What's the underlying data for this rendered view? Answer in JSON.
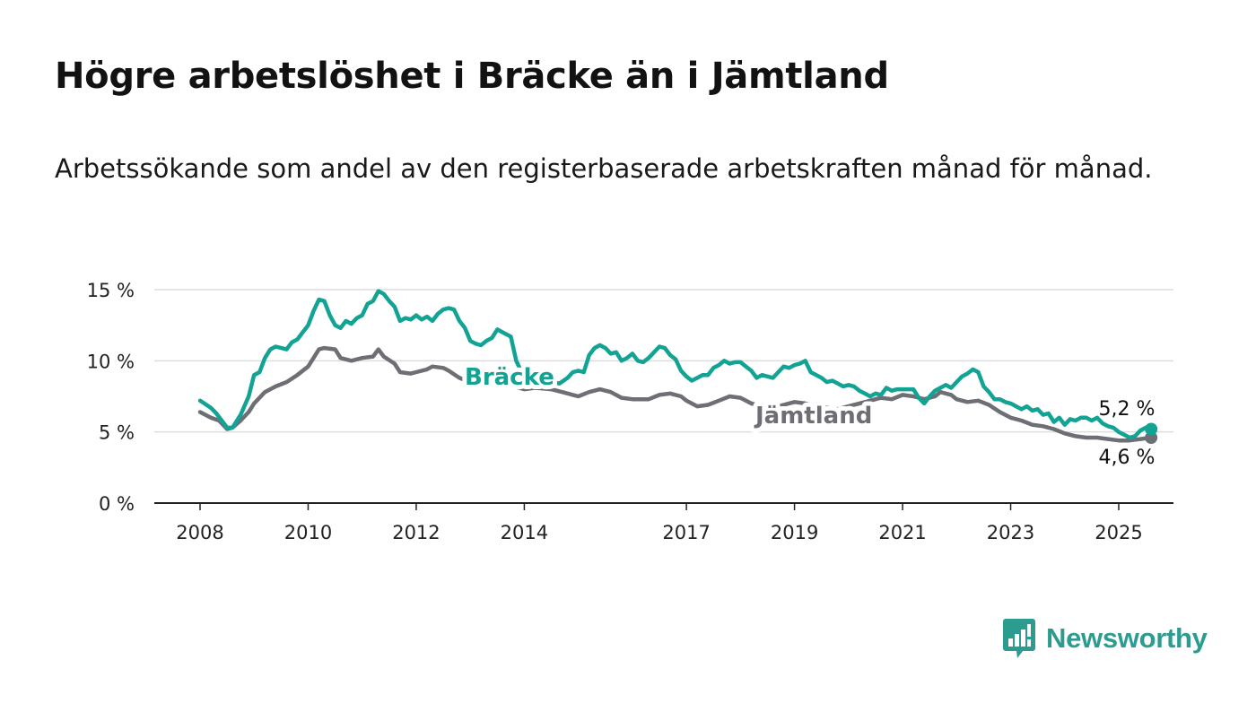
{
  "header": {
    "title": "Högre arbetslöshet i Bräcke än i Jämtland",
    "subtitle": "Arbetssökande som andel av den registerbaserade arbetskraften månad för månad."
  },
  "logo": {
    "text": "Newsworthy",
    "icon": "newsworthy-chart-bubble-icon"
  },
  "colors": {
    "bracke": "#13a394",
    "jamtland": "#6e6e75",
    "grid": "#dddddd",
    "axis": "#222222"
  },
  "chart_data": {
    "type": "line",
    "title": "Högre arbetslöshet i Bräcke än i Jämtland",
    "subtitle": "Arbetssökande som andel av den registerbaserade arbetskraften månad för månad.",
    "xlabel": "",
    "ylabel": "",
    "xlim": [
      2007.6,
      2025.9
    ],
    "ylim": [
      0,
      15
    ],
    "x_ticks": [
      2008,
      2010,
      2012,
      2014,
      2017,
      2019,
      2021,
      2023,
      2025
    ],
    "x_tick_labels": [
      "2008",
      "2010",
      "2012",
      "2014",
      "2017",
      "2019",
      "2021",
      "2023",
      "2025"
    ],
    "y_ticks": [
      0,
      5,
      10,
      15
    ],
    "y_tick_labels": [
      "0 %",
      "5 %",
      "10 %",
      "15 %"
    ],
    "grid": "horizontal",
    "series": [
      {
        "name": "Bräcke",
        "end_label": "5,2 %",
        "points": [
          [
            2008.0,
            7.2
          ],
          [
            2008.2,
            6.7
          ],
          [
            2008.3,
            6.3
          ],
          [
            2008.5,
            5.3
          ],
          [
            2008.6,
            5.3
          ],
          [
            2008.75,
            6.2
          ],
          [
            2008.9,
            7.5
          ],
          [
            2009.0,
            9.0
          ],
          [
            2009.1,
            9.2
          ],
          [
            2009.2,
            10.2
          ],
          [
            2009.3,
            10.8
          ],
          [
            2009.4,
            11.0
          ],
          [
            2009.6,
            10.8
          ],
          [
            2009.7,
            11.3
          ],
          [
            2009.8,
            11.5
          ],
          [
            2009.9,
            12.0
          ],
          [
            2010.0,
            12.5
          ],
          [
            2010.1,
            13.5
          ],
          [
            2010.2,
            14.3
          ],
          [
            2010.3,
            14.2
          ],
          [
            2010.4,
            13.2
          ],
          [
            2010.5,
            12.5
          ],
          [
            2010.6,
            12.3
          ],
          [
            2010.7,
            12.8
          ],
          [
            2010.8,
            12.6
          ],
          [
            2010.9,
            13.0
          ],
          [
            2011.0,
            13.2
          ],
          [
            2011.1,
            14.0
          ],
          [
            2011.2,
            14.2
          ],
          [
            2011.3,
            14.9
          ],
          [
            2011.4,
            14.7
          ],
          [
            2011.5,
            14.2
          ],
          [
            2011.6,
            13.8
          ],
          [
            2011.7,
            12.8
          ],
          [
            2011.8,
            13.0
          ],
          [
            2011.9,
            12.9
          ],
          [
            2012.0,
            13.2
          ],
          [
            2012.1,
            12.9
          ],
          [
            2012.2,
            13.1
          ],
          [
            2012.3,
            12.8
          ],
          [
            2012.4,
            13.3
          ],
          [
            2012.5,
            13.6
          ],
          [
            2012.6,
            13.7
          ],
          [
            2012.7,
            13.6
          ],
          [
            2012.8,
            12.8
          ],
          [
            2012.9,
            12.3
          ],
          [
            2013.0,
            11.4
          ],
          [
            2013.1,
            11.2
          ],
          [
            2013.2,
            11.1
          ],
          [
            2013.3,
            11.4
          ],
          [
            2013.4,
            11.6
          ],
          [
            2013.5,
            12.2
          ],
          [
            2013.6,
            12.0
          ],
          [
            2013.75,
            11.7
          ],
          [
            2013.85,
            10.0
          ],
          [
            2013.95,
            9.2
          ],
          [
            2014.05,
            8.5
          ],
          [
            2014.25,
            9.0
          ],
          [
            2014.5,
            8.5
          ],
          [
            2014.65,
            8.4
          ],
          [
            2014.8,
            8.8
          ],
          [
            2014.9,
            9.2
          ],
          [
            2015.0,
            9.3
          ],
          [
            2015.1,
            9.2
          ],
          [
            2015.2,
            10.4
          ],
          [
            2015.3,
            10.9
          ],
          [
            2015.4,
            11.1
          ],
          [
            2015.5,
            10.9
          ],
          [
            2015.6,
            10.5
          ],
          [
            2015.7,
            10.6
          ],
          [
            2015.8,
            10.0
          ],
          [
            2015.9,
            10.2
          ],
          [
            2016.0,
            10.5
          ],
          [
            2016.1,
            10.0
          ],
          [
            2016.2,
            9.9
          ],
          [
            2016.3,
            10.2
          ],
          [
            2016.4,
            10.6
          ],
          [
            2016.5,
            11.0
          ],
          [
            2016.6,
            10.9
          ],
          [
            2016.7,
            10.4
          ],
          [
            2016.8,
            10.1
          ],
          [
            2016.9,
            9.3
          ],
          [
            2017.0,
            8.9
          ],
          [
            2017.1,
            8.6
          ],
          [
            2017.2,
            8.8
          ],
          [
            2017.3,
            9.0
          ],
          [
            2017.4,
            9.0
          ],
          [
            2017.5,
            9.5
          ],
          [
            2017.6,
            9.7
          ],
          [
            2017.7,
            10.0
          ],
          [
            2017.8,
            9.8
          ],
          [
            2017.9,
            9.9
          ],
          [
            2018.0,
            9.9
          ],
          [
            2018.1,
            9.6
          ],
          [
            2018.2,
            9.3
          ],
          [
            2018.3,
            8.8
          ],
          [
            2018.4,
            9.0
          ],
          [
            2018.5,
            8.9
          ],
          [
            2018.6,
            8.8
          ],
          [
            2018.7,
            9.2
          ],
          [
            2018.8,
            9.6
          ],
          [
            2018.9,
            9.5
          ],
          [
            2019.0,
            9.7
          ],
          [
            2019.1,
            9.8
          ],
          [
            2019.2,
            10.0
          ],
          [
            2019.3,
            9.2
          ],
          [
            2019.4,
            9.0
          ],
          [
            2019.5,
            8.8
          ],
          [
            2019.6,
            8.5
          ],
          [
            2019.7,
            8.6
          ],
          [
            2019.8,
            8.4
          ],
          [
            2019.9,
            8.2
          ],
          [
            2020.0,
            8.3
          ],
          [
            2020.1,
            8.2
          ],
          [
            2020.2,
            7.9
          ],
          [
            2020.3,
            7.7
          ],
          [
            2020.4,
            7.5
          ],
          [
            2020.5,
            7.7
          ],
          [
            2020.6,
            7.6
          ],
          [
            2020.7,
            8.1
          ],
          [
            2020.8,
            7.9
          ],
          [
            2020.9,
            8.0
          ],
          [
            2021.0,
            8.0
          ],
          [
            2021.2,
            8.0
          ],
          [
            2021.3,
            7.4
          ],
          [
            2021.4,
            7.0
          ],
          [
            2021.5,
            7.5
          ],
          [
            2021.6,
            7.9
          ],
          [
            2021.7,
            8.1
          ],
          [
            2021.8,
            8.3
          ],
          [
            2021.9,
            8.1
          ],
          [
            2022.0,
            8.5
          ],
          [
            2022.1,
            8.9
          ],
          [
            2022.2,
            9.1
          ],
          [
            2022.3,
            9.4
          ],
          [
            2022.4,
            9.2
          ],
          [
            2022.5,
            8.2
          ],
          [
            2022.6,
            7.8
          ],
          [
            2022.7,
            7.3
          ],
          [
            2022.8,
            7.3
          ],
          [
            2022.9,
            7.1
          ],
          [
            2023.0,
            7.0
          ],
          [
            2023.1,
            6.8
          ],
          [
            2023.2,
            6.6
          ],
          [
            2023.3,
            6.8
          ],
          [
            2023.4,
            6.5
          ],
          [
            2023.5,
            6.6
          ],
          [
            2023.6,
            6.2
          ],
          [
            2023.7,
            6.3
          ],
          [
            2023.8,
            5.7
          ],
          [
            2023.9,
            6.0
          ],
          [
            2024.0,
            5.5
          ],
          [
            2024.1,
            5.9
          ],
          [
            2024.2,
            5.8
          ],
          [
            2024.3,
            6.0
          ],
          [
            2024.4,
            6.0
          ],
          [
            2024.5,
            5.8
          ],
          [
            2024.6,
            6.0
          ],
          [
            2024.7,
            5.6
          ],
          [
            2024.8,
            5.4
          ],
          [
            2024.9,
            5.3
          ],
          [
            2025.0,
            5.0
          ],
          [
            2025.1,
            4.8
          ],
          [
            2025.2,
            4.6
          ],
          [
            2025.3,
            4.7
          ],
          [
            2025.4,
            5.1
          ],
          [
            2025.5,
            5.3
          ],
          [
            2025.6,
            5.2
          ]
        ]
      },
      {
        "name": "Jämtland",
        "end_label": "4,6 %",
        "points": [
          [
            2008.0,
            6.4
          ],
          [
            2008.2,
            6.0
          ],
          [
            2008.35,
            5.8
          ],
          [
            2008.5,
            5.2
          ],
          [
            2008.6,
            5.3
          ],
          [
            2008.75,
            5.8
          ],
          [
            2008.9,
            6.4
          ],
          [
            2009.0,
            7.0
          ],
          [
            2009.2,
            7.8
          ],
          [
            2009.4,
            8.2
          ],
          [
            2009.6,
            8.5
          ],
          [
            2009.8,
            9.0
          ],
          [
            2010.0,
            9.6
          ],
          [
            2010.1,
            10.2
          ],
          [
            2010.2,
            10.8
          ],
          [
            2010.3,
            10.9
          ],
          [
            2010.5,
            10.8
          ],
          [
            2010.6,
            10.2
          ],
          [
            2010.8,
            10.0
          ],
          [
            2011.0,
            10.2
          ],
          [
            2011.2,
            10.3
          ],
          [
            2011.3,
            10.8
          ],
          [
            2011.4,
            10.3
          ],
          [
            2011.6,
            9.8
          ],
          [
            2011.7,
            9.2
          ],
          [
            2011.9,
            9.1
          ],
          [
            2012.0,
            9.2
          ],
          [
            2012.2,
            9.4
          ],
          [
            2012.3,
            9.6
          ],
          [
            2012.5,
            9.5
          ],
          [
            2012.6,
            9.3
          ],
          [
            2012.8,
            8.8
          ],
          [
            2013.0,
            8.5
          ],
          [
            2013.2,
            8.5
          ],
          [
            2013.4,
            8.7
          ],
          [
            2013.6,
            8.5
          ],
          [
            2013.8,
            8.2
          ],
          [
            2014.0,
            8.0
          ],
          [
            2014.2,
            8.1
          ],
          [
            2014.5,
            8.0
          ],
          [
            2014.7,
            7.8
          ],
          [
            2014.9,
            7.6
          ],
          [
            2015.0,
            7.5
          ],
          [
            2015.2,
            7.8
          ],
          [
            2015.4,
            8.0
          ],
          [
            2015.6,
            7.8
          ],
          [
            2015.8,
            7.4
          ],
          [
            2016.0,
            7.3
          ],
          [
            2016.3,
            7.3
          ],
          [
            2016.5,
            7.6
          ],
          [
            2016.7,
            7.7
          ],
          [
            2016.9,
            7.5
          ],
          [
            2017.0,
            7.2
          ],
          [
            2017.2,
            6.8
          ],
          [
            2017.4,
            6.9
          ],
          [
            2017.6,
            7.2
          ],
          [
            2017.8,
            7.5
          ],
          [
            2018.0,
            7.4
          ],
          [
            2018.2,
            7.0
          ],
          [
            2018.4,
            6.8
          ],
          [
            2018.6,
            6.7
          ],
          [
            2018.8,
            6.9
          ],
          [
            2019.0,
            7.1
          ],
          [
            2019.2,
            7.0
          ],
          [
            2019.4,
            6.8
          ],
          [
            2019.6,
            6.7
          ],
          [
            2019.8,
            6.6
          ],
          [
            2020.0,
            6.8
          ],
          [
            2020.2,
            7.0
          ],
          [
            2020.4,
            7.2
          ],
          [
            2020.6,
            7.4
          ],
          [
            2020.8,
            7.3
          ],
          [
            2021.0,
            7.6
          ],
          [
            2021.2,
            7.5
          ],
          [
            2021.4,
            7.3
          ],
          [
            2021.6,
            7.5
          ],
          [
            2021.7,
            7.8
          ],
          [
            2021.9,
            7.6
          ],
          [
            2022.0,
            7.3
          ],
          [
            2022.2,
            7.1
          ],
          [
            2022.4,
            7.2
          ],
          [
            2022.6,
            6.9
          ],
          [
            2022.8,
            6.4
          ],
          [
            2023.0,
            6.0
          ],
          [
            2023.2,
            5.8
          ],
          [
            2023.4,
            5.5
          ],
          [
            2023.6,
            5.4
          ],
          [
            2023.8,
            5.2
          ],
          [
            2024.0,
            4.9
          ],
          [
            2024.2,
            4.7
          ],
          [
            2024.4,
            4.6
          ],
          [
            2024.6,
            4.6
          ],
          [
            2024.8,
            4.5
          ],
          [
            2025.0,
            4.4
          ],
          [
            2025.2,
            4.4
          ],
          [
            2025.4,
            4.5
          ],
          [
            2025.6,
            4.6
          ]
        ]
      }
    ]
  }
}
